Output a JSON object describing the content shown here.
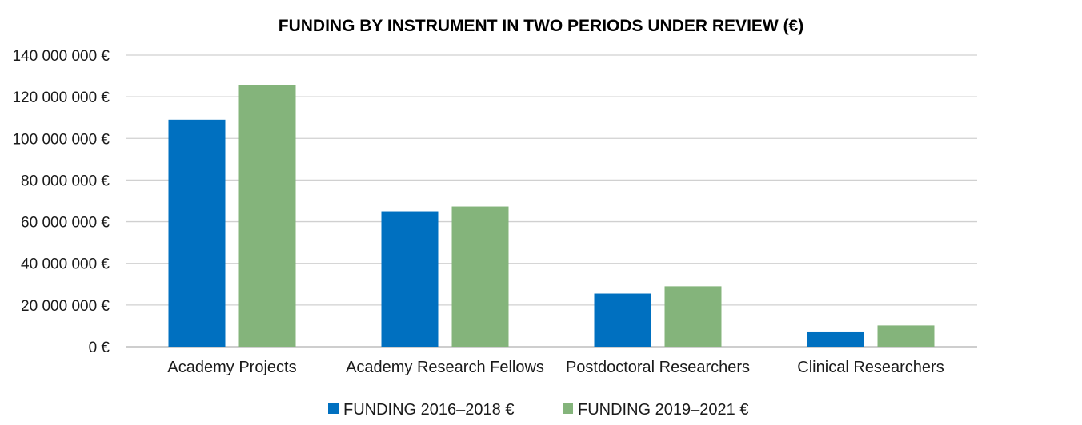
{
  "chart_data": {
    "type": "bar",
    "title": "FUNDING BY INSTRUMENT IN TWO PERIODS UNDER REVIEW (€)",
    "categories": [
      "Academy Projects",
      "Academy Research Fellows",
      "Postdoctoral Researchers",
      "Clinical Researchers"
    ],
    "series": [
      {
        "name": "FUNDING 2016–2018 €",
        "color": "#0070c0",
        "values": [
          109000000,
          65000000,
          25500000,
          7300000
        ]
      },
      {
        "name": "FUNDING 2019–2021 €",
        "color": "#84b47b",
        "values": [
          125800000,
          67300000,
          29000000,
          10200000
        ]
      }
    ],
    "ylim": [
      0,
      140000000
    ],
    "yticks": [
      0,
      20000000,
      40000000,
      60000000,
      80000000,
      100000000,
      120000000,
      140000000
    ],
    "ytick_labels": [
      "0 €",
      "20 000 000 €",
      "40 000 000 €",
      "60 000 000 €",
      "80 000 000 €",
      "100 000 000 €",
      "120 000 000 €",
      "140 000 000 €"
    ],
    "grid": true,
    "legend_position": "bottom"
  }
}
